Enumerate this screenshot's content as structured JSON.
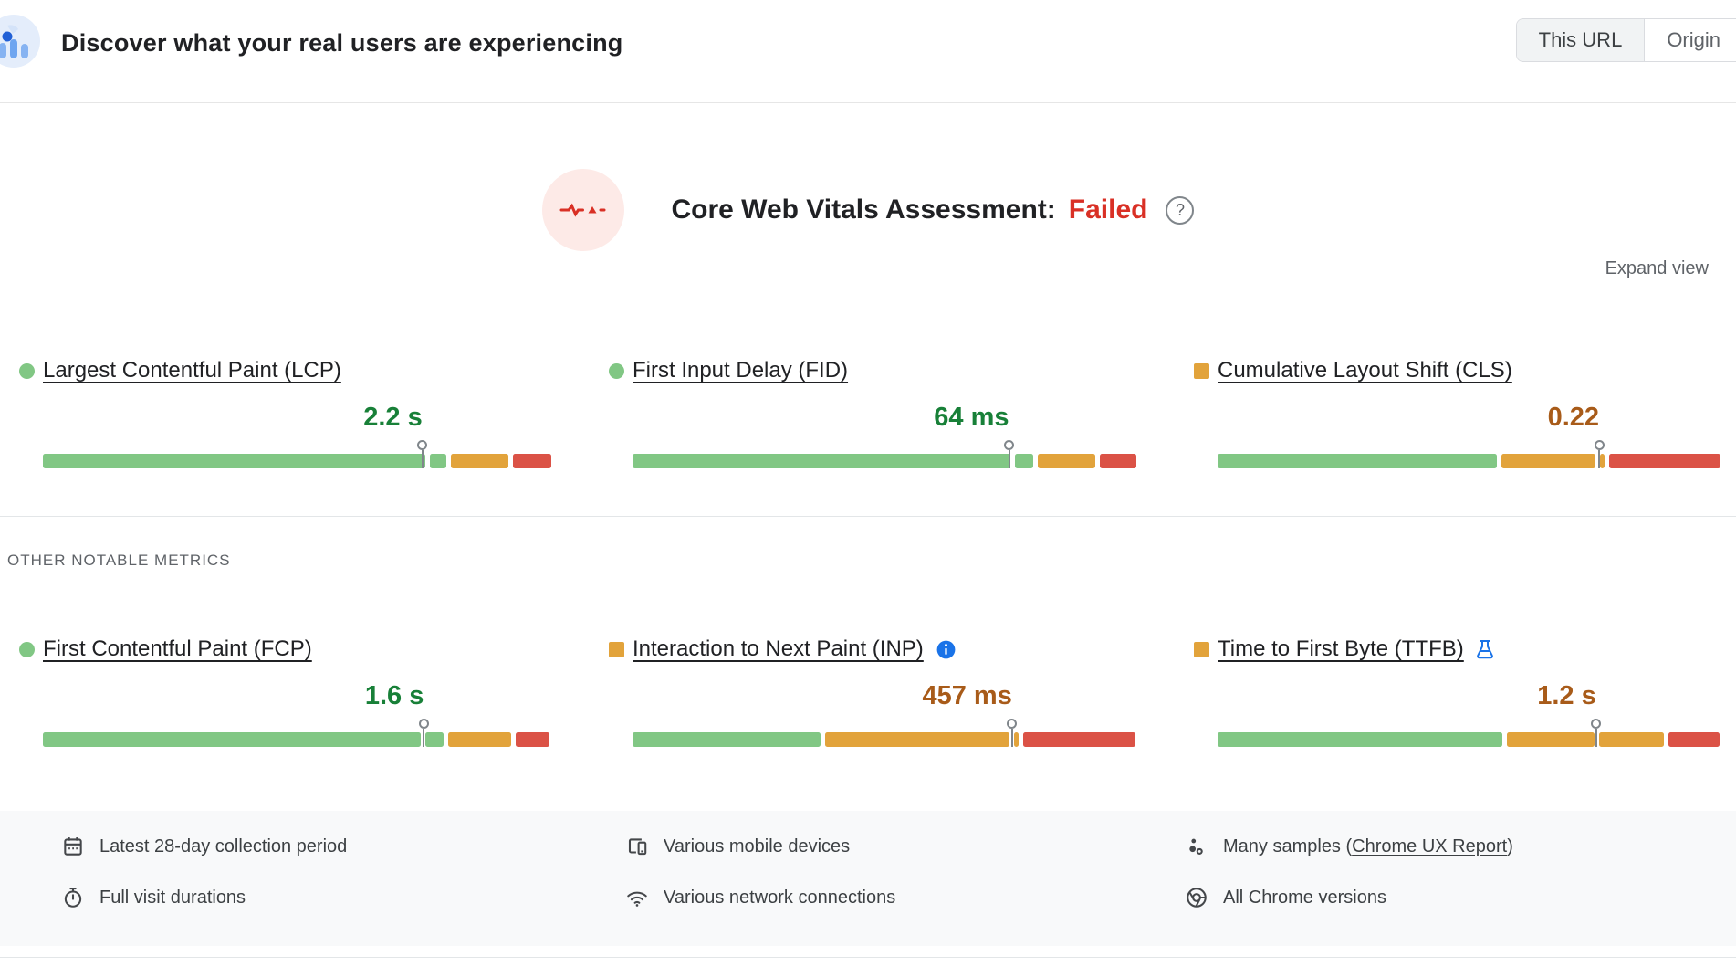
{
  "header": {
    "title": "Discover what your real users are experiencing",
    "toggle": {
      "options": [
        "This URL",
        "Origin"
      ],
      "selected": "This URL"
    }
  },
  "assessment": {
    "label": "Core Web Vitals Assessment:",
    "result": "Failed"
  },
  "expand_view_label": "Expand view",
  "section_label": "OTHER NOTABLE METRICS",
  "colors": {
    "good_bar": "#81c784",
    "ni_bar": "#e2a33b",
    "poor_bar": "#db5246",
    "good_text": "#188038",
    "ni_text": "#a85b19",
    "failed_text": "#d93025",
    "info_blue": "#1a73e8",
    "footer_bg": "#f8f9fa"
  },
  "metrics": {
    "core": [
      {
        "id": "lcp",
        "label": "Largest Contentful Paint (LCP)",
        "indicator": "good",
        "value": "2.2 s",
        "tone": "good",
        "badge": null,
        "marker": 74.5,
        "segments": [
          {
            "tone": "good",
            "pct": 75.0
          },
          {
            "tone": "good",
            "pct": 3.4
          },
          {
            "tone": "ni",
            "pct": 11.2
          },
          {
            "tone": "poor",
            "pct": 7.6
          }
        ]
      },
      {
        "id": "fid",
        "label": "First Input Delay (FID)",
        "indicator": "good",
        "value": "64 ms",
        "tone": "good",
        "badge": null,
        "marker": 74.6,
        "segments": [
          {
            "tone": "good",
            "pct": 74.8
          },
          {
            "tone": "good",
            "pct": 3.7
          },
          {
            "tone": "ni",
            "pct": 11.4
          },
          {
            "tone": "poor",
            "pct": 7.2
          }
        ]
      },
      {
        "id": "cls",
        "label": "Cumulative Layout Shift (CLS)",
        "indicator": "ni",
        "value": "0.22",
        "tone": "ni",
        "badge": null,
        "marker": 75.6,
        "segments": [
          {
            "tone": "good",
            "pct": 55.3
          },
          {
            "tone": "ni",
            "pct": 18.6
          },
          {
            "tone": "ni",
            "pct": 1.0
          },
          {
            "tone": "poor",
            "pct": 22.1
          }
        ]
      }
    ],
    "other": [
      {
        "id": "fcp",
        "label": "First Contentful Paint (FCP)",
        "indicator": "good",
        "value": "1.6 s",
        "tone": "good",
        "badge": null,
        "marker": 74.8,
        "segments": [
          {
            "tone": "good",
            "pct": 74.2
          },
          {
            "tone": "good",
            "pct": 3.5
          },
          {
            "tone": "ni",
            "pct": 12.5
          },
          {
            "tone": "poor",
            "pct": 6.6
          }
        ]
      },
      {
        "id": "inp",
        "label": "Interaction to Next Paint (INP)",
        "indicator": "ni",
        "value": "457 ms",
        "tone": "ni",
        "badge": "info-icon",
        "marker": 75.2,
        "segments": [
          {
            "tone": "good",
            "pct": 37.2
          },
          {
            "tone": "ni",
            "pct": 36.5
          },
          {
            "tone": "ni",
            "pct": 1.0
          },
          {
            "tone": "poor",
            "pct": 22.3
          }
        ]
      },
      {
        "id": "ttfb",
        "label": "Time to First Byte (TTFB)",
        "indicator": "ni",
        "value": "1.2 s",
        "tone": "ni",
        "badge": "flask-icon",
        "marker": 75.0,
        "segments": [
          {
            "tone": "good",
            "pct": 56.5
          },
          {
            "tone": "ni",
            "pct": 17.2
          },
          {
            "tone": "ni",
            "pct": 12.9
          },
          {
            "tone": "poor",
            "pct": 10.2
          }
        ]
      }
    ]
  },
  "footer": {
    "columns": [
      {
        "items": [
          {
            "icon": "calendar-icon",
            "text": "Latest 28-day collection period"
          },
          {
            "icon": "stopwatch-icon",
            "text": "Full visit durations"
          }
        ]
      },
      {
        "items": [
          {
            "icon": "mobile-devices-icon",
            "text": "Various mobile devices"
          },
          {
            "icon": "network-icon",
            "text": "Various network connections"
          }
        ]
      },
      {
        "items": [
          {
            "icon": "samples-icon",
            "text_prefix": "Many samples (",
            "link": "Chrome UX Report",
            "text_suffix": ")"
          },
          {
            "icon": "chrome-icon",
            "text": "All Chrome versions"
          }
        ]
      }
    ]
  }
}
